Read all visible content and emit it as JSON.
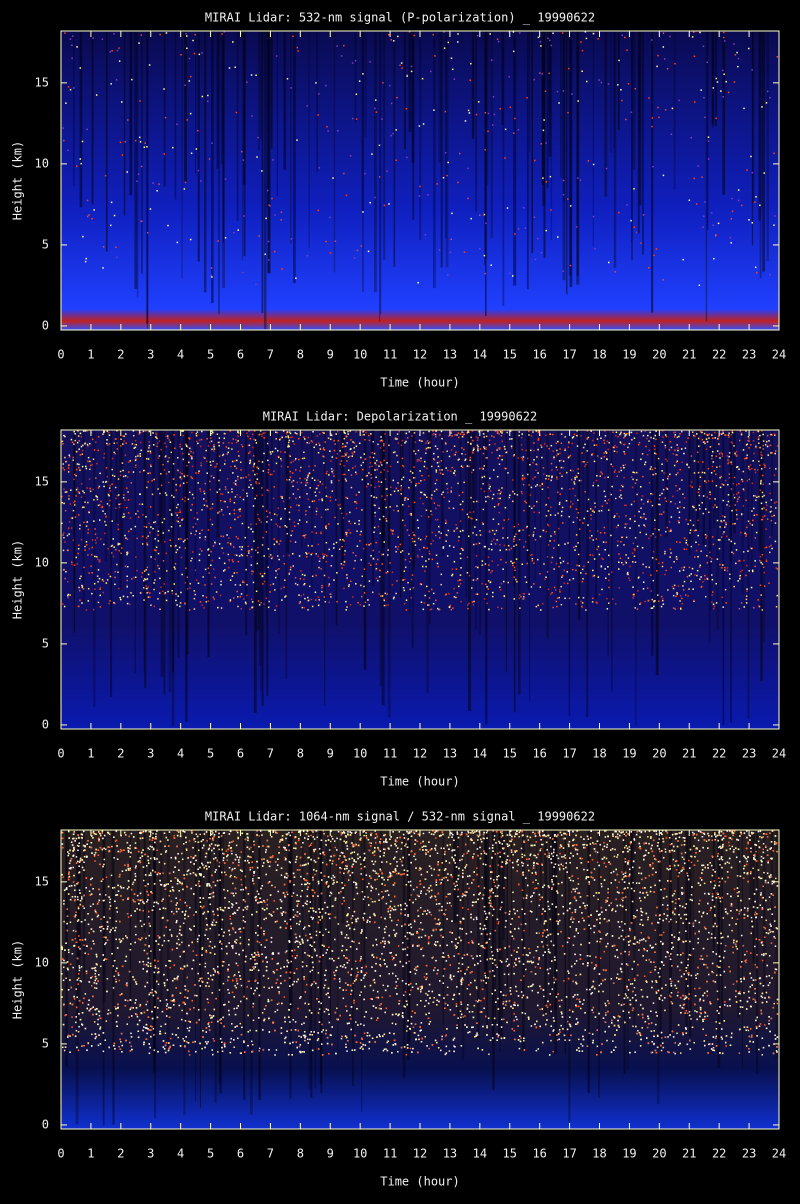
{
  "chart_data": [
    {
      "type": "heatmap",
      "title": "MIRAI Lidar: 532-nm signal (P-polarization) _ 19990622",
      "xlabel": "Time (hour)",
      "ylabel": "Height (km)",
      "xlim": [
        0,
        24
      ],
      "ylim": [
        -0.25,
        18.2
      ],
      "xticks": [
        0,
        1,
        2,
        3,
        4,
        5,
        6,
        7,
        8,
        9,
        10,
        11,
        12,
        13,
        14,
        15,
        16,
        17,
        18,
        19,
        20,
        21,
        22,
        23,
        24
      ],
      "yticks": [
        0,
        5,
        10,
        15
      ]
    },
    {
      "type": "heatmap",
      "title": "MIRAI Lidar: Depolarization _ 19990622",
      "xlabel": "Time (hour)",
      "ylabel": "Height (km)",
      "xlim": [
        0,
        24
      ],
      "ylim": [
        -0.25,
        18.2
      ],
      "xticks": [
        0,
        1,
        2,
        3,
        4,
        5,
        6,
        7,
        8,
        9,
        10,
        11,
        12,
        13,
        14,
        15,
        16,
        17,
        18,
        19,
        20,
        21,
        22,
        23,
        24
      ],
      "yticks": [
        0,
        5,
        10,
        15
      ]
    },
    {
      "type": "heatmap",
      "title": "MIRAI Lidar: 1064-nm signal / 532-nm signal _ 19990622",
      "xlabel": "Time (hour)",
      "ylabel": "Height (km)",
      "xlim": [
        0,
        24
      ],
      "ylim": [
        -0.25,
        18.2
      ],
      "xticks": [
        0,
        1,
        2,
        3,
        4,
        5,
        6,
        7,
        8,
        9,
        10,
        11,
        12,
        13,
        14,
        15,
        16,
        17,
        18,
        19,
        20,
        21,
        22,
        23,
        24
      ],
      "yticks": [
        0,
        5,
        10,
        15
      ]
    }
  ]
}
